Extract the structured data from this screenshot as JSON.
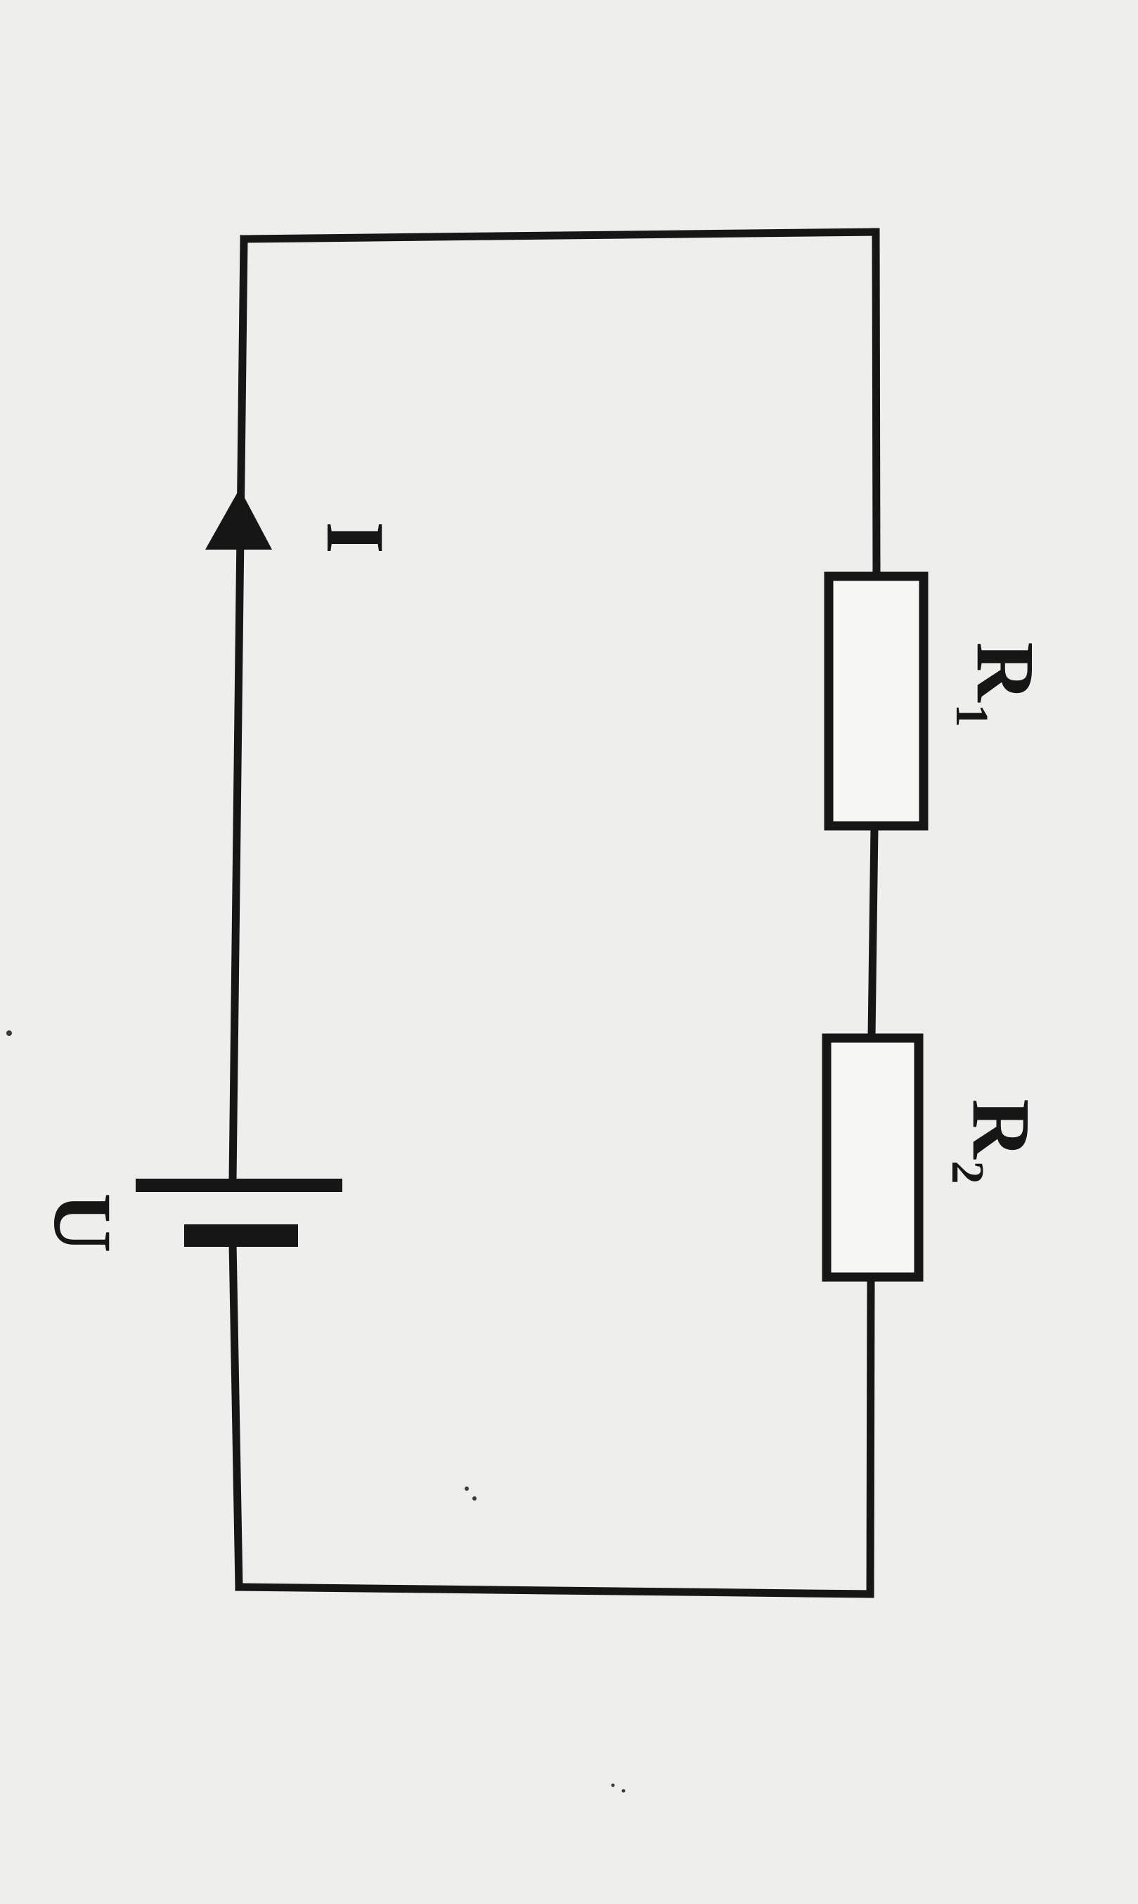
{
  "circuit": {
    "current_label": "I",
    "voltage_label": "U",
    "resistor1": {
      "letter": "R",
      "subscript": "1"
    },
    "resistor2": {
      "letter": "R",
      "subscript": "2"
    }
  },
  "colors": {
    "background": "#eeeeec",
    "ink": "#161616"
  }
}
